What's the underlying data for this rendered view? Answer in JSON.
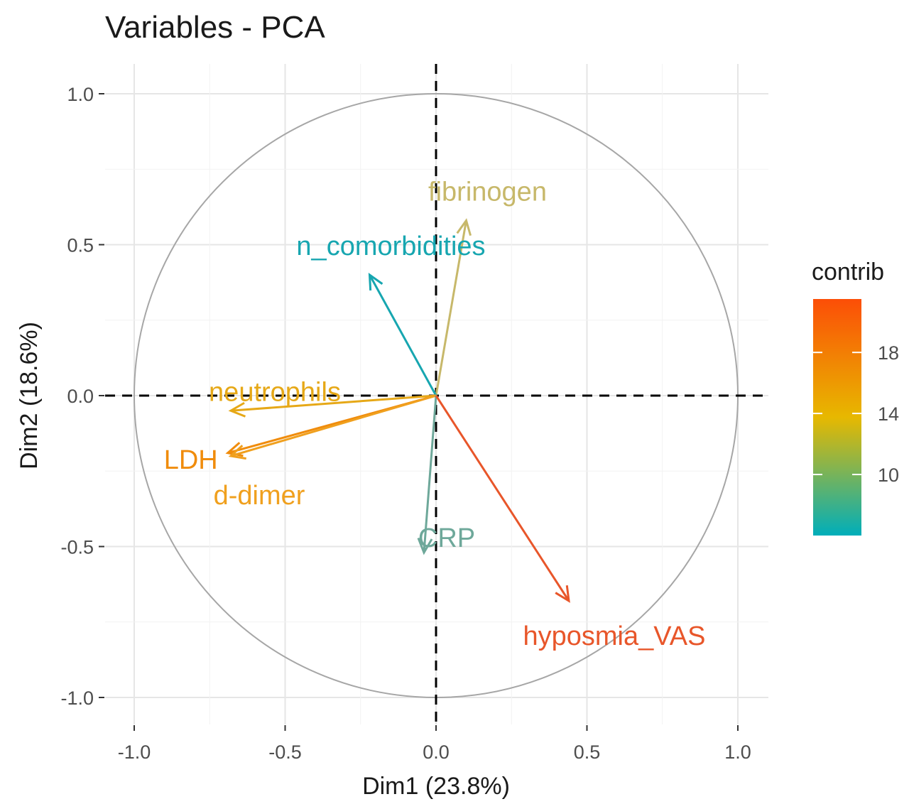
{
  "chart_data": {
    "type": "scatter",
    "subtype": "pca-variable-correlation-circle",
    "title": "Variables - PCA",
    "xlabel": "Dim1 (23.8%)",
    "ylabel": "Dim2 (18.6%)",
    "xlim": [
      -1.0,
      1.0
    ],
    "ylim": [
      -1.0,
      1.0
    ],
    "x_ticks": [
      "-1.0",
      "-0.5",
      "0.0",
      "0.5",
      "1.0"
    ],
    "y_ticks": [
      "1.0",
      "0.5",
      "0.0",
      "-0.5",
      "-1.0"
    ],
    "x_tick_values": [
      -1.0,
      -0.5,
      0.0,
      0.5,
      1.0
    ],
    "y_tick_values": [
      1.0,
      0.5,
      0.0,
      -0.5,
      -1.0
    ],
    "grid": true,
    "unit_circle": true,
    "reference_lines": "dashed at x=0 and y=0",
    "variables": [
      {
        "name": "fibrinogen",
        "x": 0.1,
        "y": 0.58,
        "contrib": 11.0,
        "color": "#c7b86a"
      },
      {
        "name": "n_comorbidities",
        "x": -0.22,
        "y": 0.4,
        "contrib": 7.0,
        "color": "#17a6b0"
      },
      {
        "name": "neutrophils",
        "x": -0.68,
        "y": -0.05,
        "contrib": 15.5,
        "color": "#e6a817"
      },
      {
        "name": "LDH",
        "x": -0.69,
        "y": -0.19,
        "contrib": 17.5,
        "color": "#f08c0c"
      },
      {
        "name": "d-dimer",
        "x": -0.68,
        "y": -0.2,
        "contrib": 16.0,
        "color": "#f0a01e"
      },
      {
        "name": "CRP",
        "x": -0.04,
        "y": -0.52,
        "contrib": 8.5,
        "color": "#6ea89a"
      },
      {
        "name": "hyposmia_VAS",
        "x": 0.44,
        "y": -0.68,
        "contrib": 20.5,
        "color": "#e8562a"
      }
    ],
    "legend": {
      "title": "contrib",
      "placement": "right",
      "ticks": [
        "18",
        "14",
        "10"
      ],
      "tick_values": [
        18,
        14,
        10
      ],
      "range": [
        6.0,
        21.5
      ],
      "gradient_colors": [
        "#00aeba",
        "#e7b800",
        "#fc4e07"
      ]
    }
  }
}
